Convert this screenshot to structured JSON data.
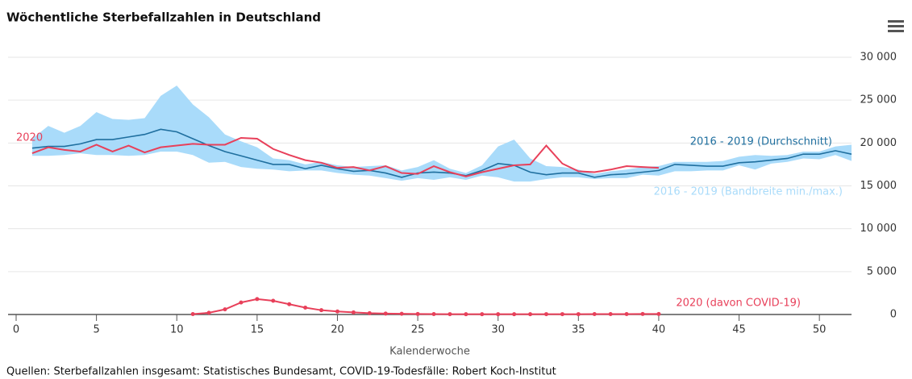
{
  "chart_data": {
    "type": "line",
    "title": "Wöchentliche Sterbefallzahlen in Deutschland",
    "x_label": "Kalenderwoche",
    "source": "Quellen: Sterbefallzahlen insgesamt: Statistisches Bundesamt, COVID-19-Todesfälle: Robert Koch-Institut",
    "x": [
      1,
      2,
      3,
      4,
      5,
      6,
      7,
      8,
      9,
      10,
      11,
      12,
      13,
      14,
      15,
      16,
      17,
      18,
      19,
      20,
      21,
      22,
      23,
      24,
      25,
      26,
      27,
      28,
      29,
      30,
      31,
      32,
      33,
      34,
      35,
      36,
      37,
      38,
      39,
      40,
      41,
      42,
      43,
      44,
      45,
      46,
      47,
      48,
      49,
      50,
      51,
      52
    ],
    "xlim": [
      0,
      52
    ],
    "xticks": [
      0,
      5,
      10,
      15,
      20,
      25,
      30,
      35,
      40,
      45,
      50
    ],
    "ylim": [
      0,
      30000
    ],
    "yticks": [
      0,
      {
        "value": 5000,
        "label": "5 000"
      },
      {
        "value": 10000,
        "label": "10 000"
      },
      {
        "value": 15000,
        "label": "15 000"
      },
      {
        "value": 20000,
        "label": "20 000"
      },
      {
        "value": 25000,
        "label": "25 000"
      },
      {
        "value": 30000,
        "label": "30 000"
      }
    ],
    "grid": true,
    "series": [
      {
        "name": "2016 - 2019 (Bandbreite min./max.)",
        "type": "arearange",
        "color": "#a9dbfa",
        "low": [
          18500,
          18500,
          18600,
          18800,
          18600,
          18600,
          18500,
          18600,
          19000,
          19000,
          18600,
          17700,
          17800,
          17200,
          17000,
          16900,
          16700,
          16800,
          16800,
          16500,
          16300,
          16200,
          15900,
          15600,
          15900,
          15700,
          16000,
          15700,
          16200,
          16000,
          15500,
          15500,
          15800,
          16000,
          16000,
          15800,
          15900,
          15900,
          16300,
          16200,
          16700,
          16700,
          16800,
          16800,
          17400,
          16900,
          17600,
          17800,
          18200,
          18100,
          18600,
          17900
        ],
        "high": [
          20500,
          22000,
          21200,
          22000,
          23600,
          22800,
          22700,
          22900,
          25500,
          26700,
          24500,
          23000,
          21000,
          20200,
          19500,
          18200,
          18000,
          17500,
          17800,
          17400,
          17200,
          17300,
          17400,
          16800,
          17200,
          18000,
          17000,
          16500,
          17400,
          19600,
          20400,
          18200,
          17300,
          17200,
          16900,
          16400,
          16700,
          16900,
          17200,
          17300,
          17800,
          17800,
          17800,
          17900,
          18400,
          18600,
          18500,
          18600,
          19000,
          19000,
          19600,
          19800
        ]
      },
      {
        "name": "2016 - 2019 (Durchschnitt)",
        "type": "line",
        "color": "#1f6f9f",
        "values": [
          19400,
          19600,
          19600,
          19900,
          20400,
          20400,
          20700,
          21000,
          21600,
          21300,
          20500,
          19700,
          19000,
          18500,
          18000,
          17500,
          17500,
          17000,
          17400,
          17000,
          16700,
          16800,
          16500,
          16000,
          16500,
          16600,
          16500,
          16200,
          16800,
          17600,
          17400,
          16600,
          16300,
          16500,
          16500,
          16000,
          16300,
          16400,
          16600,
          16800,
          17500,
          17400,
          17300,
          17300,
          17700,
          17800,
          18000,
          18200,
          18700,
          18700,
          19100,
          18700
        ]
      },
      {
        "name": "2020",
        "type": "line",
        "color": "#e8405a",
        "values": [
          18800,
          19500,
          19200,
          19000,
          19800,
          19000,
          19700,
          18900,
          19500,
          19700,
          19900,
          19800,
          19800,
          20600,
          20500,
          19300,
          18600,
          18000,
          17700,
          17100,
          17200,
          16800,
          17300,
          16500,
          16400,
          17300,
          16600,
          16100,
          16600,
          17000,
          17400,
          17500,
          19700,
          17600,
          16700,
          16600,
          16900,
          17300,
          17200,
          17100,
          null,
          null,
          null,
          null,
          null,
          null,
          null,
          null,
          null,
          null,
          null,
          null
        ]
      },
      {
        "name": "2020 (davon COVID-19)",
        "type": "line",
        "color": "#e8405a",
        "markers": true,
        "values": [
          null,
          null,
          null,
          null,
          null,
          null,
          null,
          null,
          null,
          null,
          50,
          200,
          600,
          1400,
          1800,
          1600,
          1200,
          800,
          500,
          350,
          250,
          150,
          100,
          80,
          60,
          50,
          40,
          30,
          30,
          30,
          30,
          30,
          40,
          40,
          40,
          50,
          50,
          50,
          60,
          60,
          null,
          null,
          null,
          null,
          null,
          null,
          null,
          null,
          null,
          null,
          null,
          null
        ]
      }
    ]
  }
}
